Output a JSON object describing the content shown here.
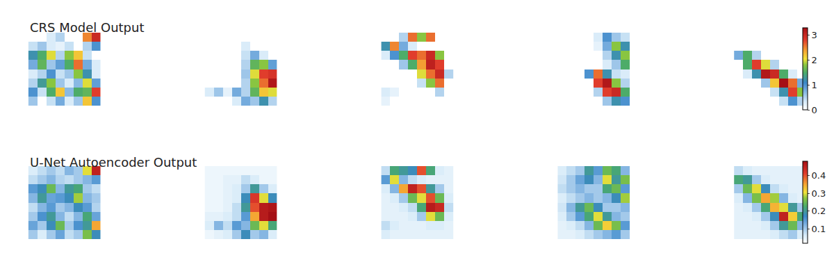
{
  "chart_data": [
    {
      "type": "heatmap",
      "title": "CRS Model Output",
      "tick_labels": false,
      "zlim": [
        0,
        3.3
      ],
      "zticks": [
        0,
        1,
        2,
        3
      ],
      "panels": [
        [
          [
            0,
            0,
            0.3,
            0.5,
            0,
            0,
            2.5,
            3.0
          ],
          [
            0.4,
            0.6,
            0.3,
            0.2,
            0.4,
            0,
            0.5,
            1.0
          ],
          [
            1.2,
            1.5,
            2.0,
            0.5,
            1.8,
            2.2,
            0.4,
            0
          ],
          [
            0.8,
            1.6,
            0.6,
            0.9,
            1.5,
            2.6,
            0.8,
            0.3
          ],
          [
            0.3,
            0.5,
            1.0,
            0.4,
            0.6,
            1.8,
            1.2,
            0.3
          ],
          [
            0.5,
            1.3,
            1.8,
            0.6,
            0.3,
            0.7,
            2.0,
            0.9
          ],
          [
            1.0,
            0.4,
            1.5,
            2.2,
            0.7,
            1.5,
            1.6,
            2.8
          ],
          [
            0.6,
            0,
            0.4,
            0.8,
            0.3,
            0.6,
            2.2,
            1.0
          ]
        ],
        [
          [
            0,
            0,
            0,
            0,
            0,
            0,
            0,
            0
          ],
          [
            0,
            0,
            0,
            0,
            0.3,
            0,
            0,
            0
          ],
          [
            0,
            0,
            0,
            0,
            0.4,
            0.8,
            0.3,
            0
          ],
          [
            0,
            0,
            0,
            0,
            0.5,
            1.6,
            1.8,
            0.9
          ],
          [
            0,
            0,
            0,
            0,
            0.6,
            2.0,
            2.8,
            2.9
          ],
          [
            0,
            0,
            0,
            0,
            0.5,
            1.8,
            2.6,
            3.2
          ],
          [
            0.3,
            0.6,
            0.2,
            0.8,
            0.5,
            1.6,
            2.2,
            2.0
          ],
          [
            0,
            0,
            0,
            0.3,
            0.8,
            0.6,
            1.2,
            0.5
          ]
        ],
        [
          [
            0,
            0,
            0.5,
            2.6,
            1.8,
            2.6,
            0,
            0
          ],
          [
            1.2,
            2.5,
            0.8,
            0.3,
            0,
            0,
            0,
            0
          ],
          [
            0.3,
            1.0,
            1.5,
            2.8,
            2.6,
            3.0,
            1.8,
            0
          ],
          [
            0,
            0,
            0.6,
            1.5,
            2.4,
            3.1,
            2.8,
            0
          ],
          [
            0,
            0,
            0,
            0,
            2.0,
            2.6,
            3.0,
            0.5
          ],
          [
            0,
            0,
            0,
            0,
            0.4,
            1.8,
            2.6,
            0
          ],
          [
            0.3,
            0.2,
            0,
            0,
            0,
            0,
            0.5,
            0
          ],
          [
            0.2,
            0,
            0,
            0,
            0,
            0,
            0,
            0
          ]
        ],
        [
          [
            0,
            0,
            0,
            0,
            0.3,
            1.0,
            0.6,
            0.4
          ],
          [
            0,
            0,
            0,
            0,
            0.2,
            0.8,
            1.8,
            1.2
          ],
          [
            0,
            0,
            0,
            0,
            0,
            0.5,
            1.2,
            1.8
          ],
          [
            0,
            0,
            0,
            0,
            0,
            0.3,
            0.6,
            1.5
          ],
          [
            0,
            0,
            0,
            1.0,
            2.6,
            1.2,
            0.4,
            0.3
          ],
          [
            0,
            0,
            0,
            0,
            2.8,
            3.2,
            1.8,
            0.5
          ],
          [
            0,
            0,
            0,
            0,
            0.5,
            2.8,
            3.0,
            1.5
          ],
          [
            0,
            0,
            0,
            0,
            0,
            0.6,
            1.2,
            1.0
          ]
        ],
        [
          [
            0,
            0,
            0,
            0,
            0,
            0,
            0,
            0
          ],
          [
            0,
            0,
            0,
            0,
            0,
            0,
            0,
            0
          ],
          [
            0.8,
            1.5,
            0.5,
            0,
            0,
            0,
            0,
            0
          ],
          [
            0,
            1.5,
            2.8,
            2.0,
            0.5,
            0,
            0,
            0
          ],
          [
            0,
            0.3,
            1.2,
            3.2,
            3.0,
            1.5,
            0.3,
            0
          ],
          [
            0,
            0,
            0,
            0.6,
            2.2,
            3.3,
            2.6,
            0.8
          ],
          [
            0,
            0,
            0,
            0,
            0.4,
            1.2,
            2.8,
            1.8
          ],
          [
            0,
            0,
            0,
            0,
            0,
            0.4,
            1.0,
            0.5
          ]
        ]
      ]
    },
    {
      "type": "heatmap",
      "title": "U-Net Autoencoder Output",
      "tick_labels": false,
      "zlim": [
        0.02,
        0.48
      ],
      "zticks": [
        0.1,
        0.2,
        0.3,
        0.4
      ],
      "panels": [
        [
          [
            0.06,
            0.08,
            0.1,
            0.08,
            0.12,
            0.1,
            0.3,
            0.45
          ],
          [
            0.08,
            0.1,
            0.12,
            0.09,
            0.08,
            0.1,
            0.12,
            0.15
          ],
          [
            0.15,
            0.18,
            0.25,
            0.12,
            0.2,
            0.22,
            0.1,
            0.08
          ],
          [
            0.12,
            0.2,
            0.14,
            0.15,
            0.18,
            0.28,
            0.12,
            0.1
          ],
          [
            0.08,
            0.12,
            0.15,
            0.1,
            0.12,
            0.18,
            0.15,
            0.09
          ],
          [
            0.1,
            0.16,
            0.2,
            0.12,
            0.08,
            0.12,
            0.22,
            0.14
          ],
          [
            0.14,
            0.1,
            0.18,
            0.25,
            0.1,
            0.16,
            0.2,
            0.35
          ],
          [
            0.1,
            0.06,
            0.1,
            0.14,
            0.08,
            0.1,
            0.26,
            0.18
          ]
        ],
        [
          [
            0.04,
            0.04,
            0.04,
            0.04,
            0.04,
            0.04,
            0.04,
            0.04
          ],
          [
            0.04,
            0.04,
            0.05,
            0.05,
            0.08,
            0.06,
            0.04,
            0.04
          ],
          [
            0.04,
            0.04,
            0.05,
            0.06,
            0.1,
            0.2,
            0.1,
            0.06
          ],
          [
            0.04,
            0.04,
            0.05,
            0.06,
            0.18,
            0.42,
            0.3,
            0.18
          ],
          [
            0.04,
            0.04,
            0.05,
            0.08,
            0.2,
            0.4,
            0.46,
            0.47
          ],
          [
            0.05,
            0.05,
            0.06,
            0.08,
            0.15,
            0.35,
            0.46,
            0.48
          ],
          [
            0.06,
            0.12,
            0.08,
            0.15,
            0.12,
            0.25,
            0.3,
            0.22
          ],
          [
            0.04,
            0.05,
            0.06,
            0.1,
            0.18,
            0.1,
            0.12,
            0.06
          ]
        ],
        [
          [
            0.08,
            0.22,
            0.2,
            0.18,
            0.4,
            0.22,
            0.06,
            0.05
          ],
          [
            0.15,
            0.3,
            0.12,
            0.08,
            0.06,
            0.05,
            0.05,
            0.05
          ],
          [
            0.06,
            0.12,
            0.35,
            0.45,
            0.4,
            0.2,
            0.1,
            0.05
          ],
          [
            0.05,
            0.06,
            0.1,
            0.25,
            0.3,
            0.4,
            0.25,
            0.06
          ],
          [
            0.05,
            0.05,
            0.06,
            0.08,
            0.22,
            0.46,
            0.44,
            0.08
          ],
          [
            0.05,
            0.05,
            0.05,
            0.06,
            0.1,
            0.3,
            0.25,
            0.06
          ],
          [
            0.08,
            0.06,
            0.05,
            0.05,
            0.05,
            0.06,
            0.06,
            0.05
          ],
          [
            0.06,
            0.05,
            0.05,
            0.05,
            0.05,
            0.05,
            0.05,
            0.05
          ]
        ],
        [
          [
            0.06,
            0.08,
            0.1,
            0.2,
            0.15,
            0.25,
            0.22,
            0.12
          ],
          [
            0.07,
            0.1,
            0.14,
            0.18,
            0.12,
            0.3,
            0.2,
            0.26
          ],
          [
            0.08,
            0.1,
            0.12,
            0.1,
            0.1,
            0.22,
            0.25,
            0.15
          ],
          [
            0.06,
            0.08,
            0.1,
            0.12,
            0.1,
            0.12,
            0.18,
            0.28
          ],
          [
            0.07,
            0.12,
            0.2,
            0.25,
            0.18,
            0.1,
            0.1,
            0.12
          ],
          [
            0.06,
            0.1,
            0.15,
            0.22,
            0.3,
            0.2,
            0.12,
            0.1
          ],
          [
            0.05,
            0.06,
            0.08,
            0.12,
            0.25,
            0.32,
            0.26,
            0.15
          ],
          [
            0.05,
            0.05,
            0.06,
            0.08,
            0.1,
            0.12,
            0.15,
            0.1
          ]
        ],
        [
          [
            0.08,
            0.06,
            0.05,
            0.05,
            0.05,
            0.05,
            0.05,
            0.05
          ],
          [
            0.22,
            0.2,
            0.1,
            0.06,
            0.05,
            0.05,
            0.05,
            0.05
          ],
          [
            0.1,
            0.25,
            0.3,
            0.18,
            0.08,
            0.06,
            0.05,
            0.05
          ],
          [
            0.06,
            0.12,
            0.26,
            0.35,
            0.28,
            0.12,
            0.06,
            0.05
          ],
          [
            0.05,
            0.06,
            0.1,
            0.22,
            0.34,
            0.3,
            0.2,
            0.1
          ],
          [
            0.05,
            0.05,
            0.06,
            0.1,
            0.18,
            0.45,
            0.32,
            0.22
          ],
          [
            0.05,
            0.05,
            0.05,
            0.06,
            0.1,
            0.2,
            0.25,
            0.12
          ],
          [
            0.05,
            0.05,
            0.05,
            0.05,
            0.06,
            0.08,
            0.1,
            0.06
          ]
        ]
      ]
    }
  ]
}
